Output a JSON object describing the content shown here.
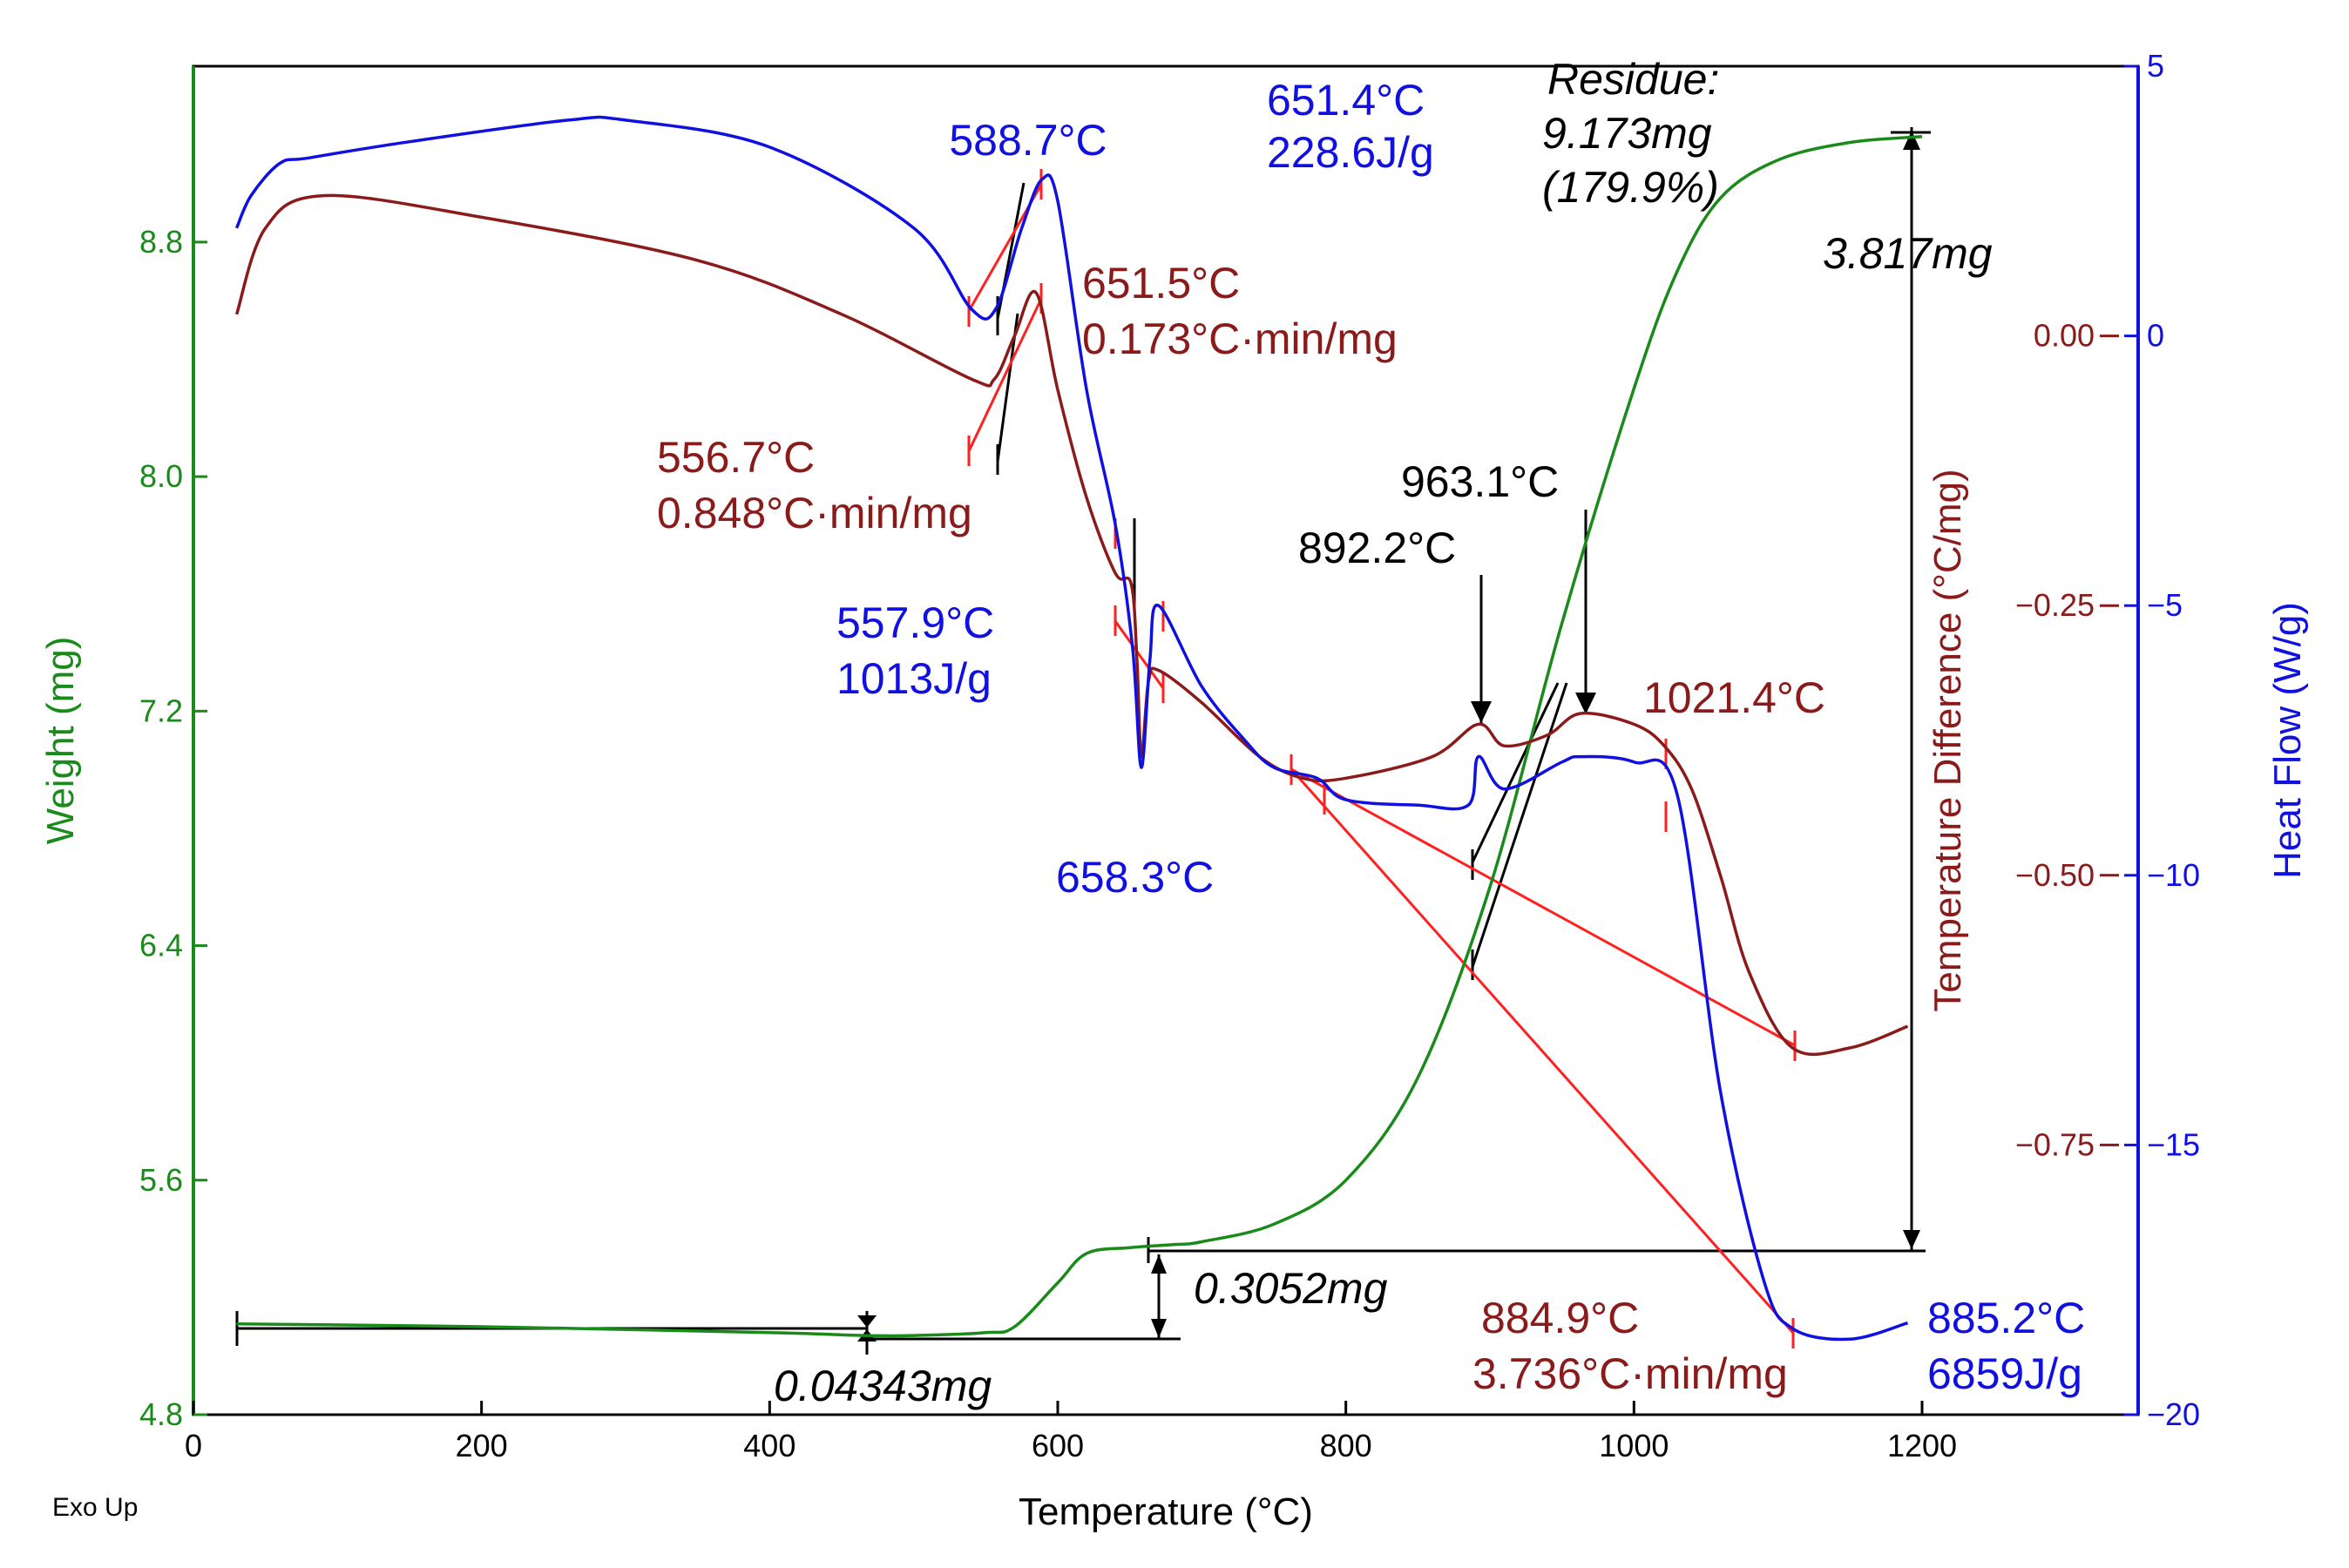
{
  "chart_data": {
    "type": "line",
    "title": "",
    "x_axis": {
      "label": "Temperature (°C)",
      "range": [
        0,
        1350
      ],
      "ticks": [
        0,
        200,
        400,
        600,
        800,
        1000,
        1200
      ],
      "tick_labels": [
        "0",
        "200",
        "400",
        "600",
        "800",
        "1000",
        "1200"
      ]
    },
    "y_axes": [
      {
        "id": "weight",
        "label": "Weight (mg)",
        "side": "left",
        "color": "#1a8a1a",
        "range": [
          4.8,
          9.4
        ],
        "ticks": [
          4.8,
          5.6,
          6.4,
          7.2,
          8.0,
          8.8
        ],
        "tick_labels": [
          "4.8",
          "5.6",
          "6.4",
          "7.2",
          "8.0",
          "8.8"
        ]
      },
      {
        "id": "tdiff",
        "label": "Temperature Difference (°C/mg)",
        "side": "right-inner",
        "color": "#8b1a1a",
        "range": [
          -1.0,
          0.25
        ],
        "ticks": [
          0.0,
          -0.25,
          -0.5,
          -0.75
        ],
        "tick_labels": [
          "0.00",
          "−0.25",
          "−0.50",
          "−0.75"
        ]
      },
      {
        "id": "heatflow",
        "label": "Heat Flow (W/g)",
        "side": "right",
        "color": "#1010e0",
        "range": [
          -20,
          5
        ],
        "ticks": [
          5,
          0,
          -5,
          -10,
          -15,
          -20
        ],
        "tick_labels": [
          "5",
          "0",
          "−5",
          "−10",
          "−15",
          "−20"
        ]
      }
    ],
    "series": [
      {
        "name": "Weight",
        "axis": "weight",
        "color": "#1a8a1a",
        "x": [
          30,
          200,
          400,
          465,
          500,
          550,
          570,
          600,
          620,
          650,
          680,
          700,
          750,
          800,
          850,
          900,
          950,
          1000,
          1030,
          1060,
          1100,
          1150,
          1200
        ],
        "y": [
          5.11,
          5.1,
          5.08,
          5.07,
          5.07,
          5.08,
          5.1,
          5.25,
          5.35,
          5.37,
          5.38,
          5.39,
          5.45,
          5.6,
          5.95,
          6.6,
          7.5,
          8.3,
          8.7,
          8.95,
          9.08,
          9.14,
          9.16
        ]
      },
      {
        "name": "Temperature Difference",
        "axis": "tdiff",
        "color": "#8b1a1a",
        "x": [
          30,
          50,
          90,
          200,
          350,
          450,
          540,
          556,
          570,
          585,
          600,
          620,
          640,
          651,
          655,
          658,
          663,
          670,
          700,
          740,
          770,
          800,
          860,
          892,
          910,
          940,
          963,
          1000,
          1021,
          1040,
          1060,
          1080,
          1110,
          1150,
          1190
        ],
        "y": [
          0.02,
          0.1,
          0.13,
          0.11,
          0.07,
          0.02,
          -0.04,
          -0.04,
          0.0,
          0.04,
          -0.05,
          -0.15,
          -0.22,
          -0.23,
          -0.3,
          -0.39,
          -0.32,
          -0.31,
          -0.34,
          -0.39,
          -0.41,
          -0.41,
          -0.39,
          -0.36,
          -0.38,
          -0.37,
          -0.35,
          -0.36,
          -0.38,
          -0.42,
          -0.5,
          -0.59,
          -0.66,
          -0.66,
          -0.64
        ]
      },
      {
        "name": "Heat Flow",
        "axis": "heatflow",
        "color": "#1010e0",
        "x": [
          30,
          40,
          60,
          80,
          150,
          260,
          300,
          400,
          500,
          540,
          557,
          575,
          589,
          600,
          620,
          640,
          652,
          658,
          664,
          670,
          700,
          730,
          750,
          780,
          800,
          850,
          885,
          892,
          910,
          950,
          963,
          1000,
          1030,
          1060,
          1090,
          1110,
          1150,
          1190
        ],
        "y": [
          2.0,
          2.6,
          3.2,
          3.3,
          3.6,
          4.0,
          4.0,
          3.5,
          2.0,
          0.5,
          0.5,
          2.0,
          2.9,
          2.5,
          -1.0,
          -3.5,
          -5.8,
          -8.0,
          -6.0,
          -5.0,
          -6.5,
          -7.5,
          -8.0,
          -8.2,
          -8.6,
          -8.7,
          -8.7,
          -7.8,
          -8.4,
          -7.9,
          -7.8,
          -7.9,
          -8.5,
          -14.0,
          -17.5,
          -18.4,
          -18.6,
          -18.3
        ]
      }
    ],
    "annotations": [
      {
        "text": "588.7°C",
        "color": "#1010e0"
      },
      {
        "text": "651.4°C",
        "color": "#1010e0"
      },
      {
        "text": "228.6J/g",
        "color": "#1010e0"
      },
      {
        "text": "Residue:",
        "color": "#000000"
      },
      {
        "text": "9.173mg",
        "color": "#000000"
      },
      {
        "text": "(179.9%)",
        "color": "#000000"
      },
      {
        "text": "3.817mg",
        "color": "#000000"
      },
      {
        "text": "651.5°C",
        "color": "#8b1a1a"
      },
      {
        "text": "0.173°C·min/mg",
        "color": "#8b1a1a"
      },
      {
        "text": "556.7°C",
        "color": "#8b1a1a"
      },
      {
        "text": "0.848°C·min/mg",
        "color": "#8b1a1a"
      },
      {
        "text": "963.1°C",
        "color": "#000000"
      },
      {
        "text": "892.2°C",
        "color": "#000000"
      },
      {
        "text": "557.9°C",
        "color": "#1010e0"
      },
      {
        "text": "1013J/g",
        "color": "#1010e0"
      },
      {
        "text": "1021.4°C",
        "color": "#8b1a1a"
      },
      {
        "text": "658.3°C",
        "color": "#1010e0"
      },
      {
        "text": "0.3052mg",
        "color": "#000000"
      },
      {
        "text": "884.9°C",
        "color": "#8b1a1a"
      },
      {
        "text": "3.736°C·min/mg",
        "color": "#8b1a1a"
      },
      {
        "text": "885.2°C",
        "color": "#1010e0"
      },
      {
        "text": "6859J/g",
        "color": "#1010e0"
      },
      {
        "text": "0.04343mg",
        "color": "#000000"
      }
    ],
    "corner_label": "Exo Up"
  }
}
